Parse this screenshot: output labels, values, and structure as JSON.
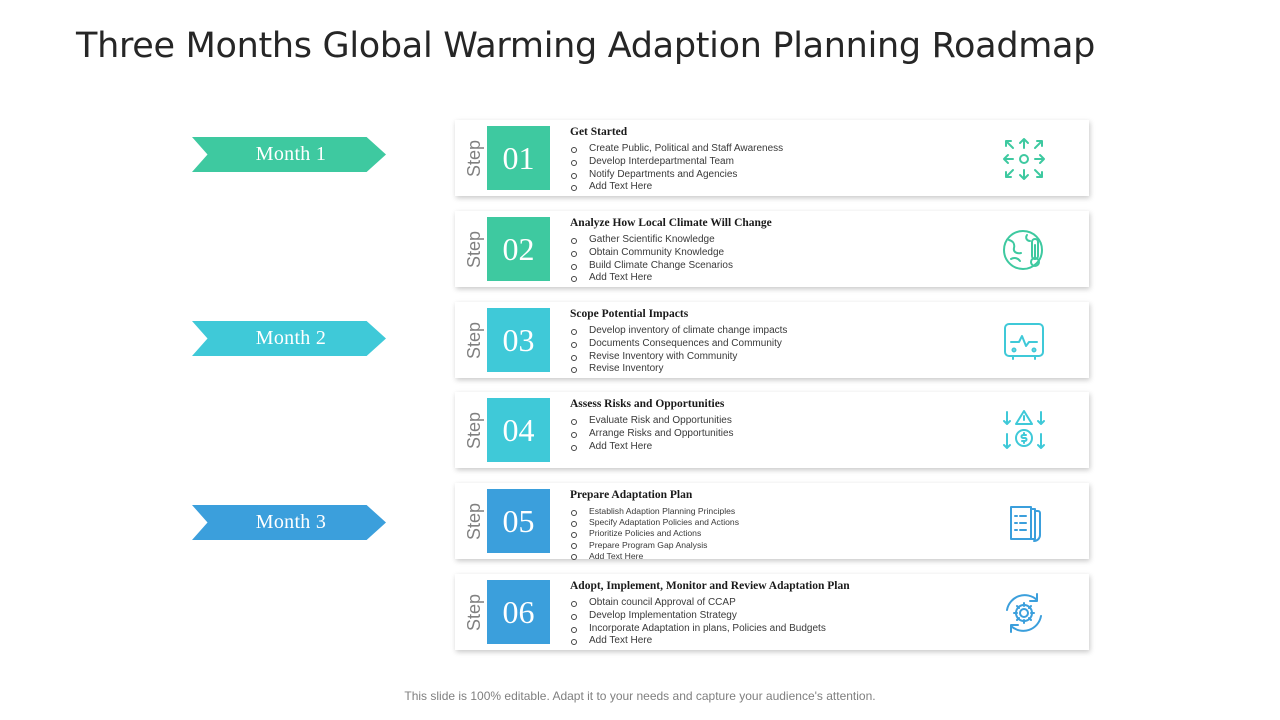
{
  "title": "Three Months Global Warming Adaption Planning Roadmap",
  "months": [
    {
      "label": "Month  1",
      "color": "#3ec9a0"
    },
    {
      "label": "Month  2",
      "color": "#3fc9d8"
    },
    {
      "label": "Month  3",
      "color": "#3b9fdc"
    }
  ],
  "step_word": "Step",
  "steps": [
    {
      "number": "01",
      "color": "#3ec9a0",
      "icon": "arrows-expand-icon",
      "heading": "Get Started",
      "items": [
        "Create Public, Political and Staff Awareness",
        "Develop Interdepartmental Team",
        "Notify Departments and Agencies",
        "Add Text Here"
      ]
    },
    {
      "number": "02",
      "color": "#3ec9a0",
      "icon": "globe-thermometer-icon",
      "heading": "Analyze How Local Climate Will Change",
      "items": [
        "Gather Scientific Knowledge",
        "Obtain Community  Knowledge",
        "Build Climate  Change Scenarios",
        "Add Text Here"
      ]
    },
    {
      "number": "03",
      "color": "#3fc9d8",
      "icon": "monitor-device-icon",
      "heading": "Scope Potential Impacts",
      "items": [
        "Develop inventory of climate  change impacts",
        "Documents Consequences and Community",
        "Revise Inventory with Community",
        "Revise Inventory"
      ]
    },
    {
      "number": "04",
      "color": "#3fc9d8",
      "icon": "risk-money-icon",
      "heading": "Assess Risks and Opportunities",
      "items": [
        "Evaluate  Risk and Opportunities",
        "Arrange Risks and Opportunities",
        "Add Text Here"
      ]
    },
    {
      "number": "05",
      "color": "#3b9fdc",
      "icon": "document-checklist-icon",
      "heading": "Prepare Adaptation Plan",
      "items": [
        "Establish Adaption Planning Principles",
        "Specify Adaptation Policies and Actions",
        "Prioritize  Policies and Actions",
        "Prepare  Program Gap  Analysis",
        "Add Text Here"
      ]
    },
    {
      "number": "06",
      "color": "#3b9fdc",
      "icon": "gear-cycle-icon",
      "heading": "Adopt, Implement, Monitor and Review Adaptation Plan",
      "items": [
        "Obtain  council Approval of CCAP",
        "Develop Implementation   Strategy",
        "Incorporate Adaptation in plans, Policies and Budgets",
        "Add Text Here"
      ]
    }
  ],
  "footer": "This slide is 100% editable. Adapt it to your needs and capture your audience's attention."
}
